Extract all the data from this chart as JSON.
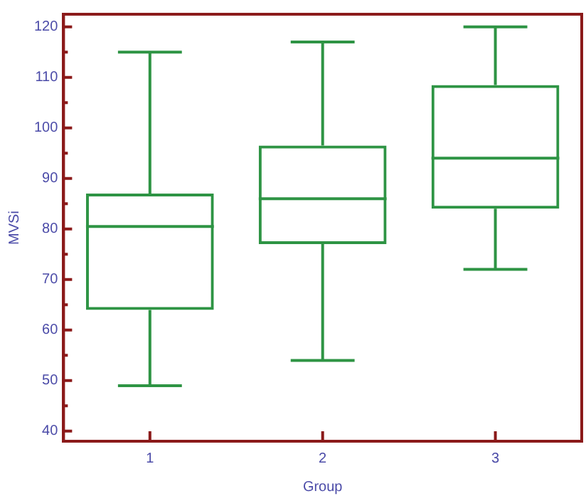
{
  "chart_data": {
    "type": "box",
    "xlabel": "Group",
    "ylabel": "MVSi",
    "categories": [
      "1",
      "2",
      "3"
    ],
    "series": [
      {
        "color": "#2e9444",
        "boxes": [
          {
            "low": 49,
            "q1": 64,
            "median": 80.5,
            "q3": 87,
            "high": 115
          },
          {
            "low": 54,
            "q1": 77,
            "median": 86,
            "q3": 96.5,
            "high": 117
          },
          {
            "low": 72,
            "q1": 84,
            "median": 94,
            "q3": 108.5,
            "high": 120
          }
        ]
      }
    ],
    "ylim": [
      38,
      122.5
    ],
    "yticks": [
      40,
      {
        "value": 45,
        "label": null
      },
      50,
      {
        "value": 55,
        "label": null
      },
      60,
      {
        "value": 65,
        "label": null
      },
      70,
      {
        "value": 75,
        "label": null
      },
      80,
      {
        "value": 85,
        "label": null
      },
      90,
      {
        "value": 95,
        "label": null
      },
      100,
      {
        "value": 105,
        "label": null
      },
      110,
      {
        "value": 115,
        "label": null
      },
      120
    ],
    "grid": false
  }
}
